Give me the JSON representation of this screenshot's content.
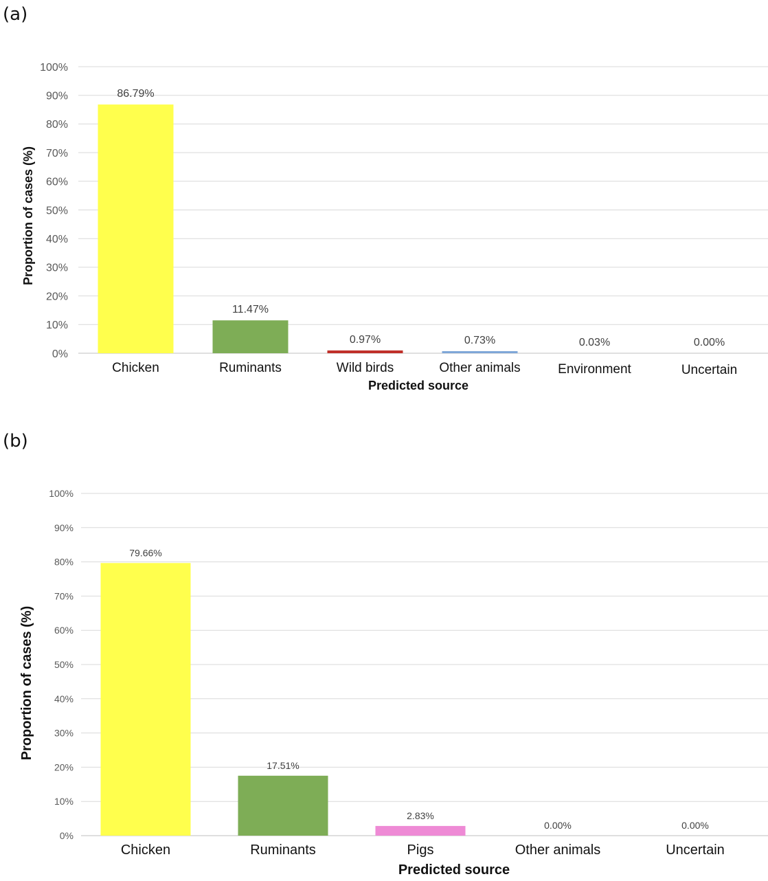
{
  "panels": [
    {
      "label": "(a)"
    },
    {
      "label": "(b)"
    }
  ],
  "chart_data": [
    {
      "type": "bar",
      "xlabel": "Predicted source",
      "ylabel": "Proportion of cases (%)",
      "ylim": [
        0,
        100
      ],
      "yticks": [
        "0%",
        "10%",
        "20%",
        "30%",
        "40%",
        "50%",
        "60%",
        "70%",
        "80%",
        "90%",
        "100%"
      ],
      "categories": [
        "Chicken",
        "Ruminants",
        "Wild birds",
        "Other animals",
        "Environment",
        "Uncertain"
      ],
      "values": [
        86.79,
        11.47,
        0.97,
        0.73,
        0.03,
        0.0
      ],
      "data_labels": [
        "86.79%",
        "11.47%",
        "0.97%",
        "0.73%",
        "0.03%",
        "0.00%"
      ],
      "colors": [
        "#FFFF4D",
        "#7EAD56",
        "#C0302A",
        "#7FA7D8",
        "#BFBFBF",
        "#BFBFBF"
      ],
      "grid": true,
      "legend": "none"
    },
    {
      "type": "bar",
      "xlabel": "Predicted source",
      "ylabel": "Proportion of cases (%)",
      "ylim": [
        0,
        100
      ],
      "yticks": [
        "0%",
        "10%",
        "20%",
        "30%",
        "40%",
        "50%",
        "60%",
        "70%",
        "80%",
        "90%",
        "100%"
      ],
      "categories": [
        "Chicken",
        "Ruminants",
        "Pigs",
        "Other animals",
        "Uncertain"
      ],
      "values": [
        79.66,
        17.51,
        2.83,
        0.0,
        0.0
      ],
      "data_labels": [
        "79.66%",
        "17.51%",
        "2.83%",
        "0.00%",
        "0.00%"
      ],
      "colors": [
        "#FFFF4D",
        "#7EAD56",
        "#EE8AD5",
        "#BFBFBF",
        "#BFBFBF"
      ],
      "grid": true,
      "legend": "none"
    }
  ]
}
